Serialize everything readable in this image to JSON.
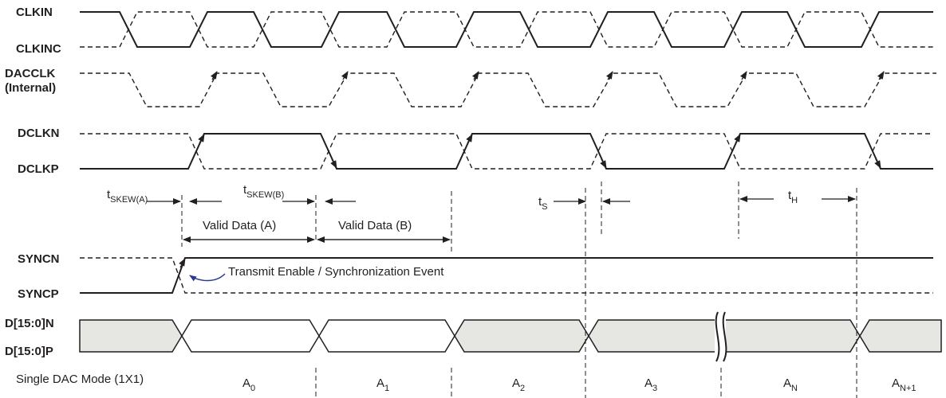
{
  "signals": {
    "clkin": "CLKIN",
    "clkinc": "CLKINC",
    "dacclk_1": "DACCLK",
    "dacclk_2": "(Internal)",
    "dclkn": "DCLKN",
    "dclkp": "DCLKP",
    "syncn": "SYNCN",
    "syncp": "SYNCP",
    "dn": "D[15:0]N",
    "dp": "D[15:0]P"
  },
  "timing": {
    "tskew_a": {
      "base": "t",
      "sub": "SKEW(A)"
    },
    "tskew_b": {
      "base": "t",
      "sub": "SKEW(B)"
    },
    "ts": {
      "base": "t",
      "sub": "S"
    },
    "th": {
      "base": "t",
      "sub": "H"
    },
    "valid_a": "Valid Data (A)",
    "valid_b": "Valid Data (B)",
    "transmit_enable": "Transmit Enable / Synchronization Event"
  },
  "mode": {
    "label": "Single DAC Mode (1X1)",
    "slots": [
      {
        "base": "A",
        "sub": "0"
      },
      {
        "base": "A",
        "sub": "1"
      },
      {
        "base": "A",
        "sub": "2"
      },
      {
        "base": "A",
        "sub": "3"
      },
      {
        "base": "A",
        "sub": "N"
      },
      {
        "base": "A",
        "sub": "N+1"
      }
    ]
  },
  "colors": {
    "ink": "#231f20",
    "bus_fill": "#e6e6e2",
    "sync_arrow": "#2b3990"
  }
}
